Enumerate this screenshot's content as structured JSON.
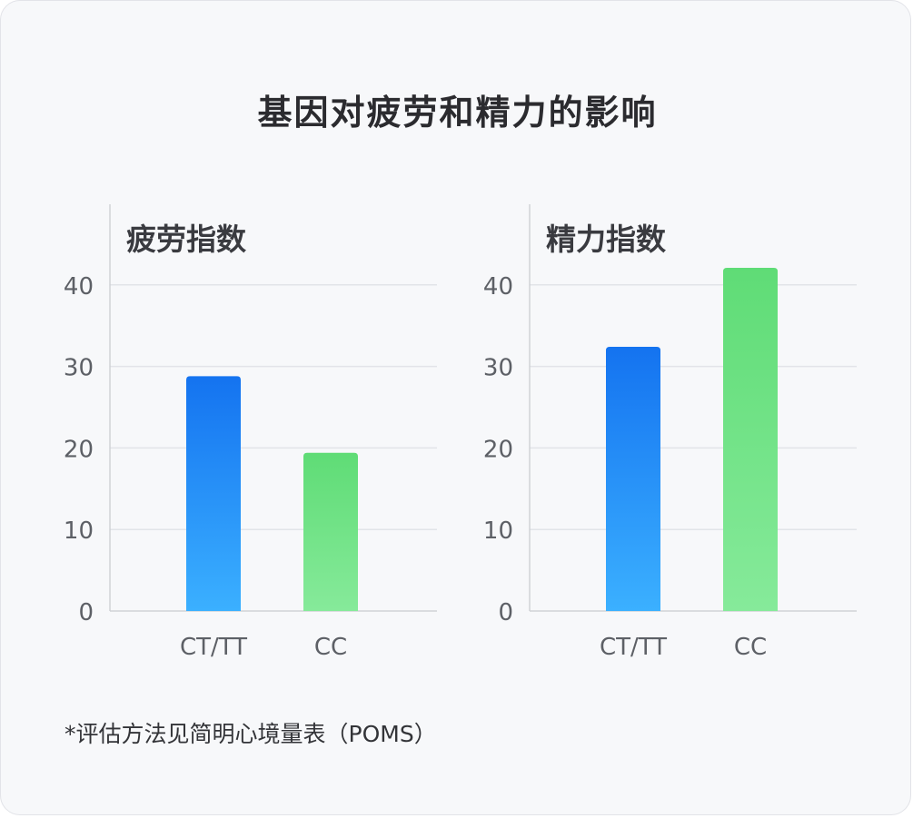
{
  "title": "基因对疲劳和精力的影响",
  "footnote": "*评估方法见简明心境量表（POMS）",
  "colors": {
    "blue_top": "#1473f0",
    "blue_bottom": "#3bb0ff",
    "green_top": "#5fdc76",
    "green_bottom": "#86ea9a",
    "axis": "#d0d2d6",
    "grid": "#e2e4e8",
    "tick_text": "#5d6066"
  },
  "chart_data": [
    {
      "type": "bar",
      "title": "疲劳指数",
      "categories": [
        "CT/TT",
        "CC"
      ],
      "values": [
        28.8,
        19.4
      ],
      "ylim": [
        0,
        50
      ],
      "yticks": [
        0,
        10,
        20,
        30,
        40
      ],
      "grid": true,
      "xlabel": "",
      "ylabel": ""
    },
    {
      "type": "bar",
      "title": "精力指数",
      "categories": [
        "CT/TT",
        "CC"
      ],
      "values": [
        32.4,
        42.1
      ],
      "ylim": [
        0,
        50
      ],
      "yticks": [
        0,
        10,
        20,
        30,
        40
      ],
      "grid": true,
      "xlabel": "",
      "ylabel": ""
    }
  ]
}
